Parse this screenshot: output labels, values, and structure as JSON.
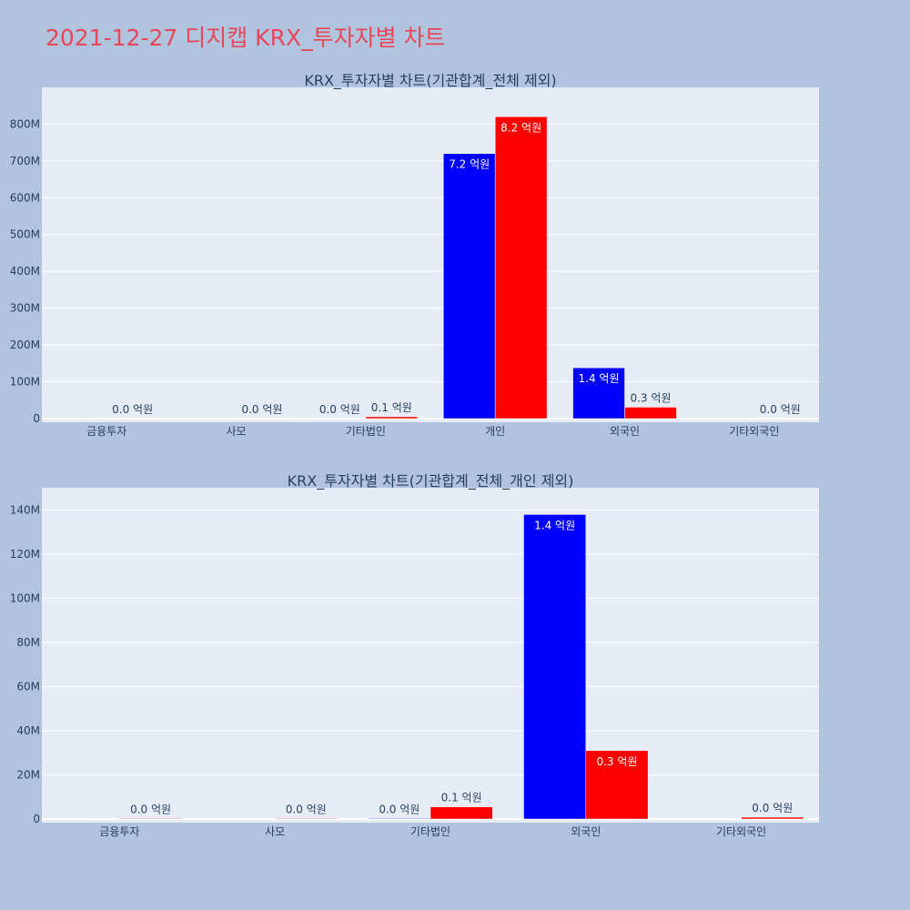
{
  "page_title": "2021-12-27 디지캡 KRX_투자자별 차트",
  "colors": {
    "background": "#b0c4de",
    "plot_background": "#e5ecf6",
    "title": "#e8475b",
    "buy_series": "#0000ff",
    "sell_series": "#ff0000"
  },
  "chart_data": [
    {
      "type": "bar",
      "title": "KRX_투자자별 차트(기관합계_전체 제외)",
      "categories": [
        "금융투자",
        "사모",
        "기타법인",
        "개인",
        "외국인",
        "기타외국인"
      ],
      "series": [
        {
          "color": "#0000ff",
          "values": [
            0,
            0,
            0.5,
            720,
            138,
            0
          ],
          "labels": [
            "",
            "",
            "0.0 억원",
            "7.2 억원",
            "1.4 억원",
            ""
          ]
        },
        {
          "color": "#ff0000",
          "values": [
            0.5,
            0.5,
            5,
            820,
            31,
            0.5
          ],
          "labels": [
            "0.0 억원",
            "0.0 억원",
            "0.1 억원",
            "8.2 억원",
            "0.3 억원",
            "0.0 억원"
          ]
        }
      ],
      "ylim": [
        0,
        875
      ],
      "yticks": [
        0,
        100,
        200,
        300,
        400,
        500,
        600,
        700,
        800
      ],
      "ytick_labels": [
        "0",
        "100M",
        "200M",
        "300M",
        "400M",
        "500M",
        "600M",
        "700M",
        "800M"
      ],
      "grid": true
    },
    {
      "type": "bar",
      "title": "KRX_투자자별 차트(기관합계_전체_개인 제외)",
      "categories": [
        "금융투자",
        "사모",
        "기타법인",
        "외국인",
        "기타외국인"
      ],
      "series": [
        {
          "color": "#0000ff",
          "values": [
            0,
            0,
            0.3,
            138,
            0
          ],
          "labels": [
            "",
            "",
            "0.0 억원",
            "1.4 억원",
            ""
          ]
        },
        {
          "color": "#ff0000",
          "values": [
            0.3,
            0.3,
            5.5,
            31,
            0.8
          ],
          "labels": [
            "0.0 억원",
            "0.0 억원",
            "0.1 억원",
            "0.3 억원",
            "0.0 억원"
          ]
        }
      ],
      "ylim": [
        0,
        146
      ],
      "yticks": [
        0,
        20,
        40,
        60,
        80,
        100,
        120,
        140
      ],
      "ytick_labels": [
        "0",
        "20M",
        "40M",
        "60M",
        "80M",
        "100M",
        "120M",
        "140M"
      ],
      "grid": true
    }
  ]
}
